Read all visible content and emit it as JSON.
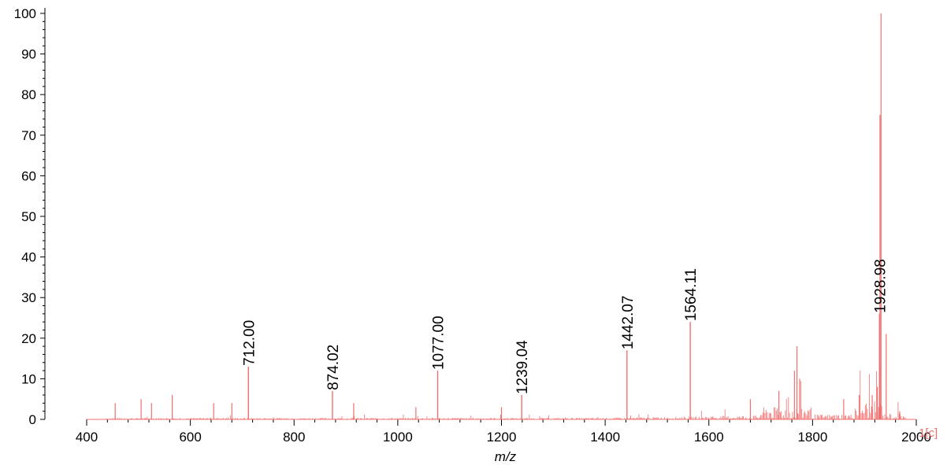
{
  "chart_data": {
    "type": "line",
    "title": "",
    "xlabel": "m/z",
    "ylabel": "",
    "xlim": [
      400,
      2000
    ],
    "ylim": [
      0,
      100
    ],
    "x_ticks": [
      400,
      600,
      800,
      1000,
      1200,
      1400,
      1600,
      1800,
      2000
    ],
    "y_ticks": [
      0,
      10,
      20,
      30,
      40,
      50,
      60,
      70,
      80,
      90,
      100
    ],
    "grid": false,
    "trace_label": "1[c]",
    "colors": {
      "trace": "#f07070",
      "trace_label": "#f07070",
      "axis": "#000000"
    },
    "peaks": [
      {
        "mz": 712.0,
        "intensity": 13,
        "label": "712.00"
      },
      {
        "mz": 874.02,
        "intensity": 7,
        "label": "874.02"
      },
      {
        "mz": 1077.0,
        "intensity": 12,
        "label": "1077.00"
      },
      {
        "mz": 1239.04,
        "intensity": 6,
        "label": "1239.04"
      },
      {
        "mz": 1442.07,
        "intensity": 17,
        "label": "1442.07"
      },
      {
        "mz": 1564.11,
        "intensity": 24,
        "label": "1564.11"
      },
      {
        "mz": 1928.98,
        "intensity": 26,
        "label": "1928.98"
      }
    ],
    "unlabeled_peaks": [
      {
        "mz": 1932,
        "intensity": 100
      },
      {
        "mz": 1930,
        "intensity": 75
      },
      {
        "mz": 1770,
        "intensity": 18
      },
      {
        "mz": 1765,
        "intensity": 12
      },
      {
        "mz": 1775,
        "intensity": 10
      },
      {
        "mz": 1942,
        "intensity": 21
      },
      {
        "mz": 1925,
        "intensity": 8
      },
      {
        "mz": 1915,
        "intensity": 6
      },
      {
        "mz": 915,
        "intensity": 4
      },
      {
        "mz": 680,
        "intensity": 4
      },
      {
        "mz": 645,
        "intensity": 4
      },
      {
        "mz": 565,
        "intensity": 6
      },
      {
        "mz": 505,
        "intensity": 5
      },
      {
        "mz": 525,
        "intensity": 4
      },
      {
        "mz": 455,
        "intensity": 4
      },
      {
        "mz": 1035,
        "intensity": 3
      },
      {
        "mz": 1200,
        "intensity": 3
      },
      {
        "mz": 1680,
        "intensity": 5
      },
      {
        "mz": 1735,
        "intensity": 7
      },
      {
        "mz": 1860,
        "intensity": 5
      },
      {
        "mz": 1890,
        "intensity": 6
      },
      {
        "mz": 1968,
        "intensity": 2
      }
    ]
  }
}
